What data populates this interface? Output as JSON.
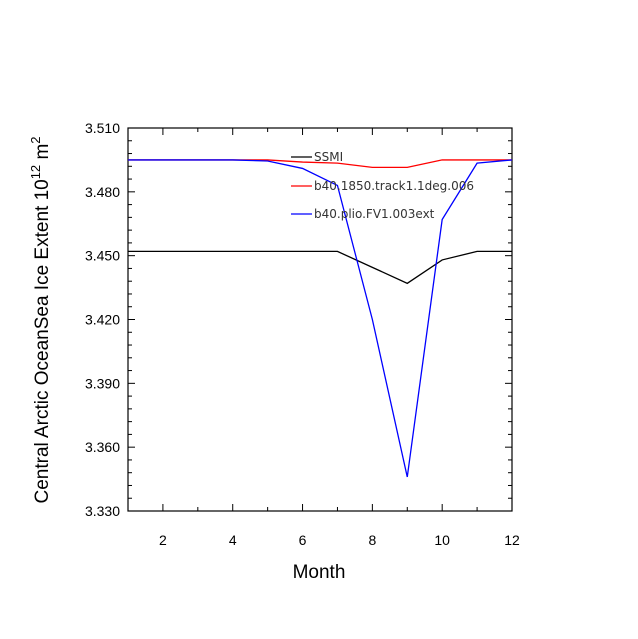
{
  "chart_data": {
    "type": "line",
    "xlabel": "Month",
    "ylabel": "Central Arctic OceanSea Ice Extent 10",
    "ylabel_exp": "12",
    "ylabel_unit": " m",
    "ylabel_unit_exp": "2",
    "xlim": [
      1,
      12
    ],
    "ylim": [
      3.33,
      3.51
    ],
    "xticks": [
      2,
      4,
      6,
      8,
      10,
      12
    ],
    "yticks": [
      3.33,
      3.36,
      3.39,
      3.42,
      3.45,
      3.48,
      3.51
    ],
    "ytick_labels": [
      "3.330",
      "3.360",
      "3.390",
      "3.420",
      "3.450",
      "3.480",
      "3.510"
    ],
    "grid": false,
    "legend_position": "top-right inside",
    "x": [
      1,
      2,
      3,
      4,
      5,
      6,
      7,
      8,
      9,
      10,
      11,
      12
    ],
    "series": [
      {
        "name": "SSMI",
        "color": "#000000",
        "values": [
          3.452,
          3.452,
          3.452,
          3.452,
          3.452,
          3.452,
          3.452,
          3.4445,
          3.437,
          3.448,
          3.452,
          3.452
        ]
      },
      {
        "name": "b40.1850.track1.1deg.006",
        "color": "#ff0000",
        "values": [
          3.495,
          3.495,
          3.495,
          3.495,
          3.495,
          3.494,
          3.4935,
          3.4915,
          3.4915,
          3.495,
          3.495,
          3.495
        ]
      },
      {
        "name": "b40.plio.FV1.003ext",
        "color": "#0000ff",
        "values": [
          3.495,
          3.495,
          3.495,
          3.495,
          3.4945,
          3.491,
          3.483,
          3.42,
          3.346,
          3.467,
          3.4935,
          3.495
        ]
      }
    ]
  }
}
